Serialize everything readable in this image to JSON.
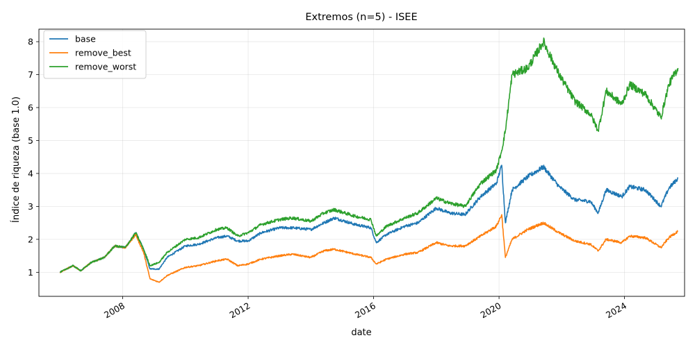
{
  "chart_data": {
    "type": "line",
    "title": "Extremos (n=5) - ISEE",
    "xlabel": "date",
    "ylabel": "Índice de riqueza (base 1.0)",
    "xlim": [
      "2005-05-01",
      "2025-12-01"
    ],
    "ylim": [
      0.27,
      8.38
    ],
    "x_ticks": [
      "2008",
      "2012",
      "2016",
      "2020",
      "2024"
    ],
    "y_ticks": [
      1,
      2,
      3,
      4,
      5,
      6,
      7,
      8
    ],
    "grid": true,
    "legend_position": "upper left",
    "series": [
      {
        "name": "base",
        "color": "#1f77b4",
        "points": [
          [
            "2006-01-01",
            1.0
          ],
          [
            "2006-06-01",
            1.2
          ],
          [
            "2006-09-01",
            1.05
          ],
          [
            "2007-01-01",
            1.3
          ],
          [
            "2007-06-01",
            1.45
          ],
          [
            "2007-10-01",
            1.8
          ],
          [
            "2008-02-01",
            1.75
          ],
          [
            "2008-06-01",
            2.2
          ],
          [
            "2008-09-01",
            1.7
          ],
          [
            "2008-11-15",
            1.1
          ],
          [
            "2009-03-01",
            1.1
          ],
          [
            "2009-06-01",
            1.45
          ],
          [
            "2010-01-01",
            1.8
          ],
          [
            "2010-06-01",
            1.85
          ],
          [
            "2011-01-01",
            2.05
          ],
          [
            "2011-05-01",
            2.1
          ],
          [
            "2011-09-01",
            1.95
          ],
          [
            "2012-01-01",
            1.95
          ],
          [
            "2012-06-01",
            2.2
          ],
          [
            "2013-01-01",
            2.35
          ],
          [
            "2013-06-01",
            2.35
          ],
          [
            "2014-01-01",
            2.3
          ],
          [
            "2014-06-01",
            2.5
          ],
          [
            "2014-10-01",
            2.65
          ],
          [
            "2015-06-01",
            2.45
          ],
          [
            "2015-12-01",
            2.35
          ],
          [
            "2016-02-01",
            1.9
          ],
          [
            "2016-06-01",
            2.15
          ],
          [
            "2017-01-01",
            2.4
          ],
          [
            "2017-06-01",
            2.5
          ],
          [
            "2018-01-01",
            2.95
          ],
          [
            "2018-06-01",
            2.8
          ],
          [
            "2018-12-01",
            2.75
          ],
          [
            "2019-06-01",
            3.3
          ],
          [
            "2019-12-01",
            3.7
          ],
          [
            "2020-02-01",
            4.25
          ],
          [
            "2020-03-15",
            2.5
          ],
          [
            "2020-06-01",
            3.5
          ],
          [
            "2020-12-01",
            3.9
          ],
          [
            "2021-06-01",
            4.2
          ],
          [
            "2021-12-01",
            3.6
          ],
          [
            "2022-06-01",
            3.2
          ],
          [
            "2022-12-01",
            3.15
          ],
          [
            "2023-03-01",
            2.8
          ],
          [
            "2023-06-01",
            3.5
          ],
          [
            "2023-12-01",
            3.3
          ],
          [
            "2024-03-01",
            3.6
          ],
          [
            "2024-09-01",
            3.5
          ],
          [
            "2025-03-01",
            3.0
          ],
          [
            "2025-06-01",
            3.55
          ],
          [
            "2025-09-15",
            3.85
          ]
        ]
      },
      {
        "name": "remove_best",
        "color": "#ff7f0e",
        "points": [
          [
            "2006-01-01",
            1.0
          ],
          [
            "2006-06-01",
            1.2
          ],
          [
            "2006-09-01",
            1.05
          ],
          [
            "2007-01-01",
            1.3
          ],
          [
            "2007-06-01",
            1.45
          ],
          [
            "2007-10-01",
            1.8
          ],
          [
            "2008-02-01",
            1.75
          ],
          [
            "2008-06-01",
            2.15
          ],
          [
            "2008-09-01",
            1.6
          ],
          [
            "2008-11-15",
            0.8
          ],
          [
            "2009-03-01",
            0.7
          ],
          [
            "2009-06-01",
            0.9
          ],
          [
            "2010-01-01",
            1.15
          ],
          [
            "2010-06-01",
            1.2
          ],
          [
            "2011-01-01",
            1.35
          ],
          [
            "2011-05-01",
            1.4
          ],
          [
            "2011-09-01",
            1.2
          ],
          [
            "2012-01-01",
            1.25
          ],
          [
            "2012-06-01",
            1.4
          ],
          [
            "2013-01-01",
            1.5
          ],
          [
            "2013-06-01",
            1.55
          ],
          [
            "2014-01-01",
            1.45
          ],
          [
            "2014-06-01",
            1.65
          ],
          [
            "2014-10-01",
            1.7
          ],
          [
            "2015-06-01",
            1.55
          ],
          [
            "2015-12-01",
            1.45
          ],
          [
            "2016-02-01",
            1.25
          ],
          [
            "2016-06-01",
            1.4
          ],
          [
            "2017-01-01",
            1.55
          ],
          [
            "2017-06-01",
            1.6
          ],
          [
            "2018-01-01",
            1.9
          ],
          [
            "2018-06-01",
            1.8
          ],
          [
            "2018-12-01",
            1.8
          ],
          [
            "2019-06-01",
            2.1
          ],
          [
            "2019-12-01",
            2.4
          ],
          [
            "2020-02-01",
            2.75
          ],
          [
            "2020-03-15",
            1.45
          ],
          [
            "2020-06-01",
            2.0
          ],
          [
            "2020-12-01",
            2.3
          ],
          [
            "2021-06-01",
            2.5
          ],
          [
            "2021-12-01",
            2.2
          ],
          [
            "2022-06-01",
            1.95
          ],
          [
            "2022-12-01",
            1.85
          ],
          [
            "2023-03-01",
            1.65
          ],
          [
            "2023-06-01",
            2.0
          ],
          [
            "2023-12-01",
            1.9
          ],
          [
            "2024-03-01",
            2.1
          ],
          [
            "2024-09-01",
            2.05
          ],
          [
            "2025-03-01",
            1.75
          ],
          [
            "2025-06-01",
            2.05
          ],
          [
            "2025-09-15",
            2.25
          ]
        ]
      },
      {
        "name": "remove_worst",
        "color": "#2ca02c",
        "points": [
          [
            "2006-01-01",
            1.0
          ],
          [
            "2006-06-01",
            1.2
          ],
          [
            "2006-09-01",
            1.05
          ],
          [
            "2007-01-01",
            1.3
          ],
          [
            "2007-06-01",
            1.45
          ],
          [
            "2007-10-01",
            1.8
          ],
          [
            "2008-02-01",
            1.75
          ],
          [
            "2008-06-01",
            2.2
          ],
          [
            "2008-09-01",
            1.7
          ],
          [
            "2008-11-15",
            1.2
          ],
          [
            "2009-03-01",
            1.3
          ],
          [
            "2009-06-01",
            1.6
          ],
          [
            "2010-01-01",
            2.0
          ],
          [
            "2010-06-01",
            2.05
          ],
          [
            "2011-01-01",
            2.3
          ],
          [
            "2011-05-01",
            2.35
          ],
          [
            "2011-09-01",
            2.1
          ],
          [
            "2012-01-01",
            2.2
          ],
          [
            "2012-06-01",
            2.45
          ],
          [
            "2013-01-01",
            2.6
          ],
          [
            "2013-06-01",
            2.65
          ],
          [
            "2014-01-01",
            2.55
          ],
          [
            "2014-06-01",
            2.8
          ],
          [
            "2014-10-01",
            2.9
          ],
          [
            "2015-06-01",
            2.7
          ],
          [
            "2015-12-01",
            2.6
          ],
          [
            "2016-02-01",
            2.1
          ],
          [
            "2016-06-01",
            2.4
          ],
          [
            "2017-01-01",
            2.65
          ],
          [
            "2017-06-01",
            2.8
          ],
          [
            "2018-01-01",
            3.25
          ],
          [
            "2018-06-01",
            3.1
          ],
          [
            "2018-12-01",
            3.0
          ],
          [
            "2019-06-01",
            3.7
          ],
          [
            "2019-12-01",
            4.1
          ],
          [
            "2020-02-01",
            4.7
          ],
          [
            "2020-03-15",
            5.3
          ],
          [
            "2020-06-01",
            7.0
          ],
          [
            "2020-12-01",
            7.2
          ],
          [
            "2021-06-01",
            8.0
          ],
          [
            "2021-12-01",
            7.0
          ],
          [
            "2022-06-01",
            6.2
          ],
          [
            "2022-12-01",
            5.8
          ],
          [
            "2023-03-01",
            5.3
          ],
          [
            "2023-06-01",
            6.5
          ],
          [
            "2023-12-01",
            6.1
          ],
          [
            "2024-03-01",
            6.7
          ],
          [
            "2024-09-01",
            6.4
          ],
          [
            "2025-03-01",
            5.7
          ],
          [
            "2025-06-01",
            6.7
          ],
          [
            "2025-09-15",
            7.2
          ]
        ]
      }
    ]
  }
}
